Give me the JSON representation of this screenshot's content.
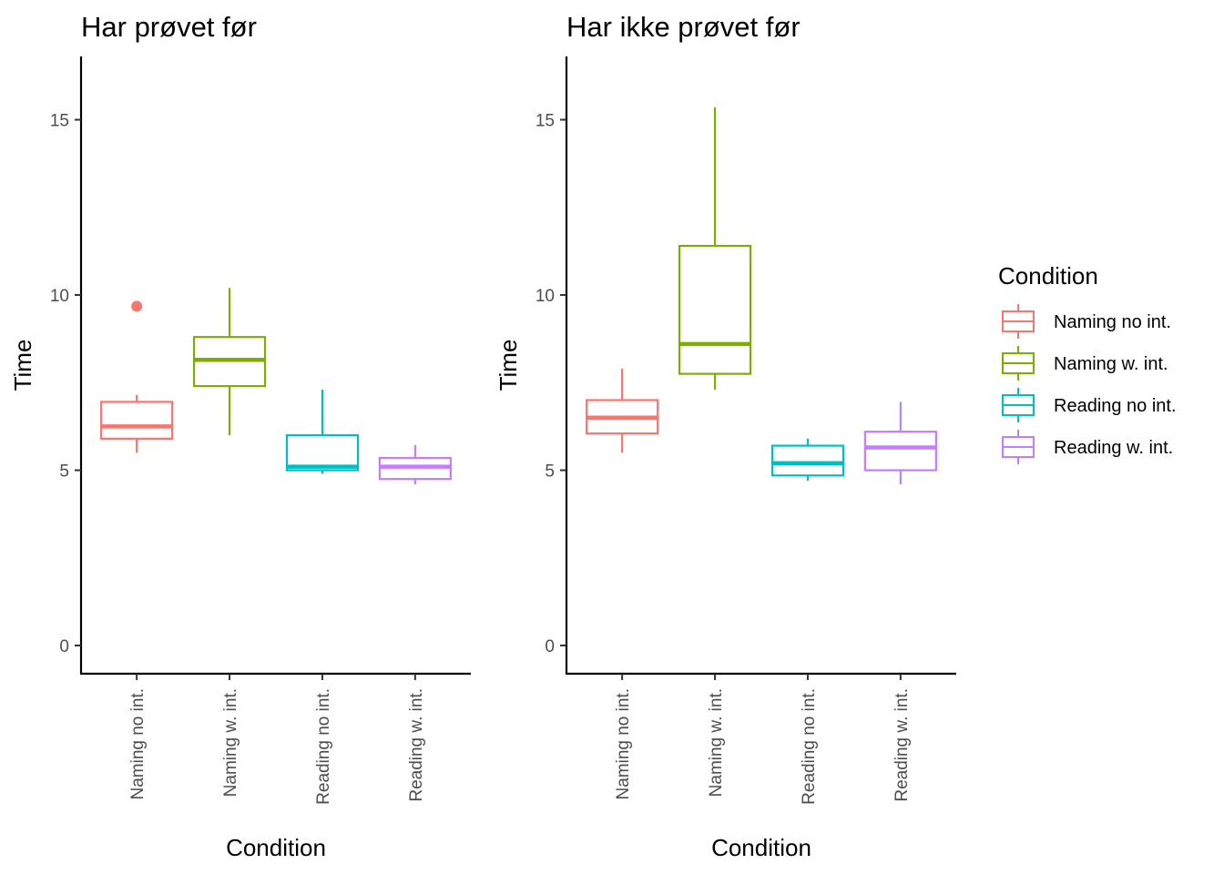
{
  "chart_data": [
    {
      "type": "boxplot",
      "title": "Har prøvet før",
      "xlabel": "Condition",
      "ylabel": "Time",
      "ylim": [
        -0.8,
        16.7
      ],
      "yticks": [
        0,
        5,
        10,
        15
      ],
      "categories": [
        "Naming no int.",
        "Naming w. int.",
        "Reading no int.",
        "Reading w. int."
      ],
      "boxes": [
        {
          "category": "Naming no int.",
          "lower_whisker": 5.5,
          "q1": 5.9,
          "median": 6.25,
          "q3": 6.95,
          "upper_whisker": 7.15,
          "outliers": [
            9.68
          ]
        },
        {
          "category": "Naming w. int.",
          "lower_whisker": 6.0,
          "q1": 7.4,
          "median": 8.15,
          "q3": 8.8,
          "upper_whisker": 10.2,
          "outliers": []
        },
        {
          "category": "Reading no int.",
          "lower_whisker": 4.9,
          "q1": 5.0,
          "median": 5.1,
          "q3": 6.0,
          "upper_whisker": 7.3,
          "outliers": []
        },
        {
          "category": "Reading w. int.",
          "lower_whisker": 4.6,
          "q1": 4.75,
          "median": 5.1,
          "q3": 5.35,
          "upper_whisker": 5.72,
          "outliers": []
        }
      ]
    },
    {
      "type": "boxplot",
      "title": "Har ikke prøvet før",
      "xlabel": "Condition",
      "ylabel": "Time",
      "ylim": [
        -0.8,
        16.7
      ],
      "yticks": [
        0,
        5,
        10,
        15
      ],
      "categories": [
        "Naming no int.",
        "Naming w. int.",
        "Reading no int.",
        "Reading w. int."
      ],
      "boxes": [
        {
          "category": "Naming no int.",
          "lower_whisker": 5.5,
          "q1": 6.05,
          "median": 6.5,
          "q3": 7.0,
          "upper_whisker": 7.9,
          "outliers": []
        },
        {
          "category": "Naming w. int.",
          "lower_whisker": 7.3,
          "q1": 7.75,
          "median": 8.6,
          "q3": 11.4,
          "upper_whisker": 15.35,
          "outliers": []
        },
        {
          "category": "Reading no int.",
          "lower_whisker": 4.7,
          "q1": 4.85,
          "median": 5.2,
          "q3": 5.7,
          "upper_whisker": 5.9,
          "outliers": []
        },
        {
          "category": "Reading w. int.",
          "lower_whisker": 4.6,
          "q1": 5.0,
          "median": 5.65,
          "q3": 6.1,
          "upper_whisker": 6.95,
          "outliers": []
        }
      ]
    }
  ],
  "legend": {
    "title": "Condition",
    "placement": "right",
    "items": [
      {
        "label": "Naming no int.",
        "color": "#F8766D"
      },
      {
        "label": "Naming w. int.",
        "color": "#7CAE00"
      },
      {
        "label": "Reading no int.",
        "color": "#00BFC4"
      },
      {
        "label": "Reading w. int.",
        "color": "#C77CFF"
      }
    ]
  }
}
